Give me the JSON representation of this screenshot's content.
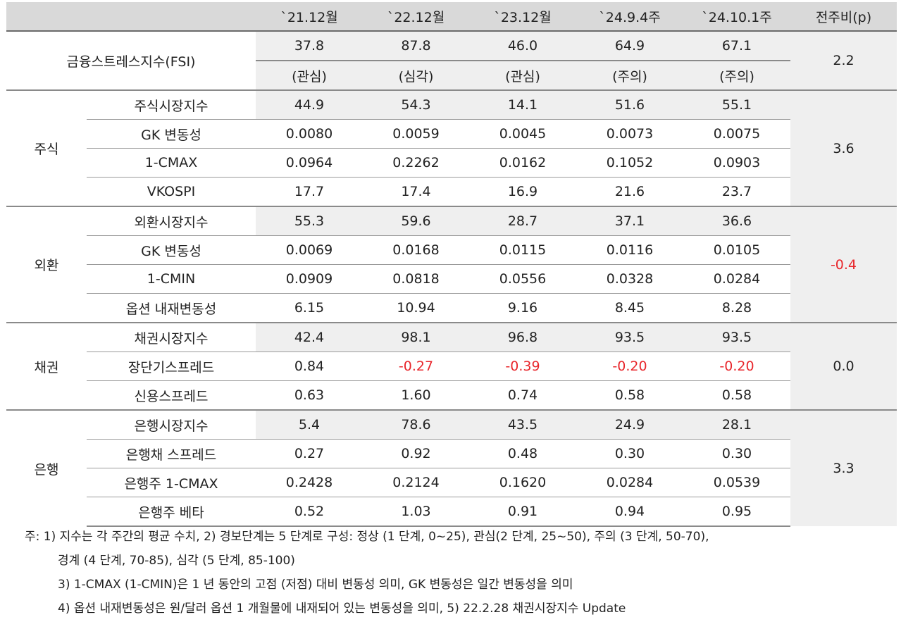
{
  "header": {
    "columns": [
      "`21.12월",
      "`22.12월",
      "`23.12월",
      "`24.9.4주",
      "`24.10.1주",
      "전주비(p)"
    ]
  },
  "fsi": {
    "label": "금융스트레스지수(FSI)",
    "values": [
      "37.8",
      "87.8",
      "46.0",
      "64.9",
      "67.1"
    ],
    "levels": [
      "(관심)",
      "(심각)",
      "(관심)",
      "(주의)",
      "(주의)"
    ],
    "change": "2.2"
  },
  "groups": [
    {
      "name": "주식",
      "change": "3.6",
      "rows": [
        {
          "label": "주식시장지수",
          "values": [
            "44.9",
            "54.3",
            "14.1",
            "51.6",
            "55.1"
          ]
        },
        {
          "label": "GK 변동성",
          "values": [
            "0.0080",
            "0.0059",
            "0.0045",
            "0.0073",
            "0.0075"
          ]
        },
        {
          "label": "1-CMAX",
          "values": [
            "0.0964",
            "0.2262",
            "0.0162",
            "0.1052",
            "0.0903"
          ]
        },
        {
          "label": "VKOSPI",
          "values": [
            "17.7",
            "17.4",
            "16.9",
            "21.6",
            "23.7"
          ]
        }
      ]
    },
    {
      "name": "외환",
      "change": "-0.4",
      "rows": [
        {
          "label": "외환시장지수",
          "values": [
            "55.3",
            "59.6",
            "28.7",
            "37.1",
            "36.6"
          ]
        },
        {
          "label": "GK 변동성",
          "values": [
            "0.0069",
            "0.0168",
            "0.0115",
            "0.0116",
            "0.0105"
          ]
        },
        {
          "label": "1-CMIN",
          "values": [
            "0.0909",
            "0.0818",
            "0.0556",
            "0.0328",
            "0.0284"
          ]
        },
        {
          "label": "옵션 내재변동성",
          "values": [
            "6.15",
            "10.94",
            "9.16",
            "8.45",
            "8.28"
          ]
        }
      ]
    },
    {
      "name": "채권",
      "change": "0.0",
      "rows": [
        {
          "label": "채권시장지수",
          "values": [
            "42.4",
            "98.1",
            "96.8",
            "93.5",
            "93.5"
          ]
        },
        {
          "label": "장단기스프레드",
          "values": [
            "0.84",
            "-0.27",
            "-0.39",
            "-0.20",
            "-0.20"
          ]
        },
        {
          "label": "신용스프레드",
          "values": [
            "0.63",
            "1.60",
            "0.74",
            "0.58",
            "0.58"
          ]
        }
      ]
    },
    {
      "name": "은행",
      "change": "3.3",
      "rows": [
        {
          "label": "은행시장지수",
          "values": [
            "5.4",
            "78.6",
            "43.5",
            "24.9",
            "28.1"
          ]
        },
        {
          "label": "은행채 스프레드",
          "values": [
            "0.27",
            "0.92",
            "0.48",
            "0.30",
            "0.30"
          ]
        },
        {
          "label": "은행주 1-CMAX",
          "values": [
            "0.2428",
            "0.2124",
            "0.1620",
            "0.0284",
            "0.0539"
          ]
        },
        {
          "label": "은행주 베타",
          "values": [
            "0.52",
            "1.03",
            "0.91",
            "0.94",
            "0.95"
          ]
        }
      ]
    }
  ],
  "notes": {
    "line1": "주: 1) 지수는 각 주간의 평균 수치, 2) 경보단계는 5 단계로 구성: 정상 (1 단계, 0~25), 관심(2 단계, 25~50), 주의 (3 단계, 50-70),",
    "line2": "경계 (4 단계, 70-85), 심각 (5 단계, 85-100)",
    "line3": "3) 1-CMAX (1-CMIN)은 1 년 동안의 고점 (저점) 대비 변동성 의미, GK 변동성은 일간 변동성을 의미",
    "line4": "4) 옵션 내재변동성은 원/달러 옵션 1 개월물에 내재되어 있는 변동성을 의미, 5) 22.2.28 채권시장지수 Update"
  },
  "colors": {
    "negative": "#e8262b",
    "header_bg": "#d9d9d9",
    "shade_bg": "#efefef"
  }
}
